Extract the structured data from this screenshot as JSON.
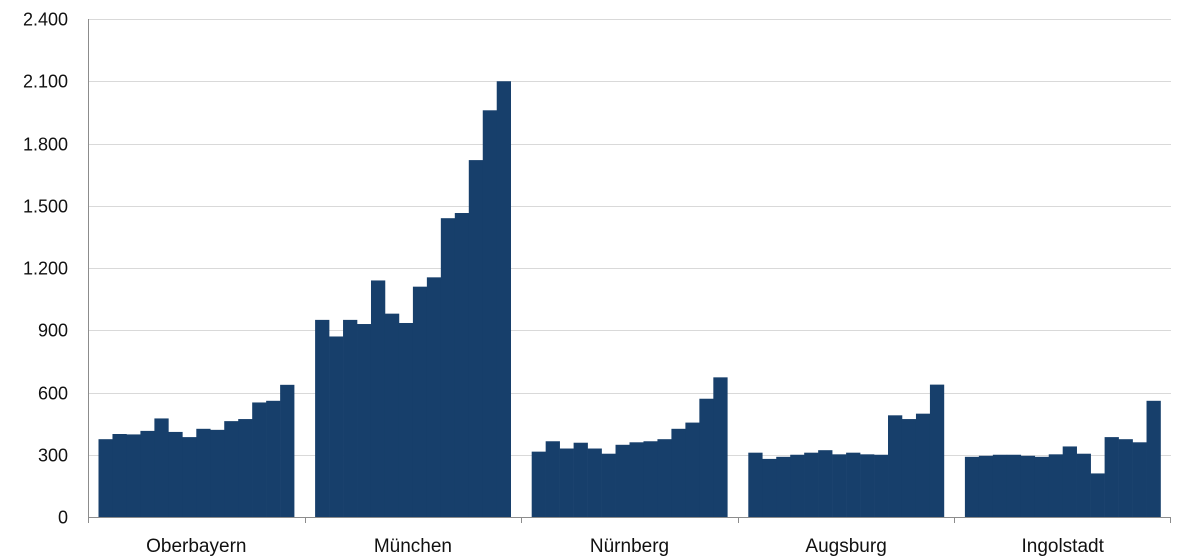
{
  "chart_data": {
    "type": "bar",
    "title": "",
    "xlabel": "",
    "ylabel": "",
    "ylim": [
      0,
      2400
    ],
    "yticks": [
      0,
      300,
      600,
      900,
      1200,
      1500,
      1800,
      2100,
      2400
    ],
    "ytick_labels": [
      "0",
      "300",
      "600",
      "900",
      "1.200",
      "1.500",
      "1.800",
      "2.100",
      "2.400"
    ],
    "grid": true,
    "legend": "none",
    "bar_color": "#173f6b",
    "categories": [
      "Oberbayern",
      "München",
      "Nürnberg",
      "Augsburg",
      "Ingolstadt"
    ],
    "groups": [
      {
        "name": "Oberbayern",
        "values": [
          375,
          400,
          398,
          415,
          475,
          410,
          385,
          425,
          420,
          462,
          472,
          552,
          560,
          637
        ]
      },
      {
        "name": "München",
        "values": [
          950,
          870,
          950,
          930,
          1140,
          980,
          935,
          1110,
          1155,
          1440,
          1465,
          1720,
          1960,
          2100
        ]
      },
      {
        "name": "Nürnberg",
        "values": [
          315,
          365,
          330,
          358,
          330,
          305,
          348,
          360,
          365,
          375,
          425,
          455,
          570,
          673
        ]
      },
      {
        "name": "Augsburg",
        "values": [
          310,
          280,
          290,
          300,
          310,
          322,
          302,
          310,
          302,
          300,
          490,
          472,
          498,
          638
        ]
      },
      {
        "name": "Ingolstadt",
        "values": [
          290,
          295,
          300,
          300,
          295,
          290,
          302,
          340,
          305,
          210,
          385,
          375,
          360,
          560
        ]
      }
    ]
  }
}
